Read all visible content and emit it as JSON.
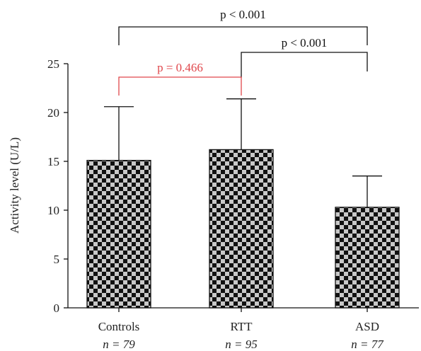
{
  "chart_data": {
    "type": "bar",
    "ylabel": "Activity level (U/L)",
    "ylim": [
      0,
      25
    ],
    "yticks": [
      0,
      5,
      10,
      15,
      20,
      25
    ],
    "categories": [
      "Controls",
      "RTT",
      "ASD"
    ],
    "n_labels": [
      "n = 79",
      "n = 95",
      "n = 77"
    ],
    "values": [
      15.1,
      16.2,
      10.3
    ],
    "error_upper": [
      20.6,
      21.4,
      13.5
    ],
    "bar_pattern": "black and light-gray checkerboard",
    "annotations": [
      {
        "from": "Controls",
        "to": "ASD",
        "text": "p < 0.001",
        "color": "#111111"
      },
      {
        "from": "RTT",
        "to": "ASD",
        "text": "p < 0.001",
        "color": "#111111"
      },
      {
        "from": "Controls",
        "to": "RTT",
        "text": "p = 0.466",
        "color": "#e0474c"
      }
    ]
  }
}
